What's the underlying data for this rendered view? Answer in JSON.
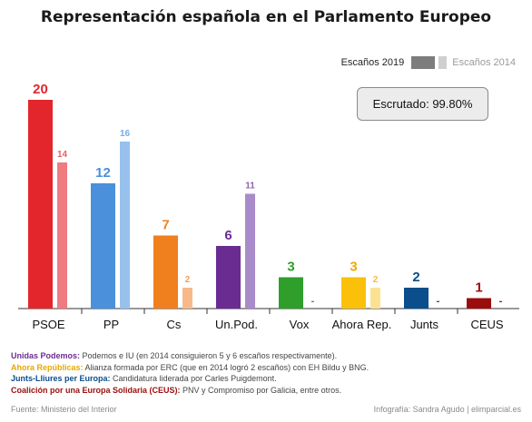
{
  "title": "Representación española en el Parlamento Europeo",
  "legend": {
    "label_2019": "Escaños 2019",
    "label_2014": "Escaños 2014"
  },
  "scrutiny": "Escrutado: 99.80%",
  "chart_data": {
    "type": "bar",
    "title": "Representación española en el Parlamento Europeo",
    "categories": [
      "PSOE",
      "PP",
      "Cs",
      "Un.Pod.",
      "Vox",
      "Ahora Rep.",
      "Junts",
      "CEUS"
    ],
    "series": [
      {
        "name": "Escaños 2019",
        "values": [
          20,
          12,
          7,
          6,
          3,
          3,
          2,
          1
        ]
      },
      {
        "name": "Escaños 2014",
        "values": [
          14,
          16,
          2,
          11,
          null,
          2,
          null,
          null
        ]
      }
    ],
    "labels_2019": [
      "20",
      "12",
      "7",
      "6",
      "3",
      "3",
      "2",
      "1"
    ],
    "labels_2014": [
      "14",
      "16",
      "2",
      "11",
      "-",
      "2",
      "-",
      "-"
    ],
    "colors_2019": [
      "#e3262b",
      "#4a90db",
      "#f07f1e",
      "#6a2c91",
      "#2f9e2b",
      "#fbc00a",
      "#0a4e8c",
      "#9b0d0d"
    ],
    "colors_2014": [
      "#ee7b80",
      "#97c0ec",
      "#f7b98a",
      "#a98bc9",
      "#8ecf8b",
      "#fde193",
      "#7da3c6",
      "#c87d7d"
    ],
    "label_colors_2019": [
      "#e3262b",
      "#4a90db",
      "#f07f1e",
      "#6a2c91",
      "#2f9e2b",
      "#f0a800",
      "#0a4e8c",
      "#9b0d0d"
    ],
    "label_colors_2014": [
      "#e3262b",
      "#4a90db",
      "#f07f1e",
      "#6a2c91",
      "#2f9e2b",
      "#f0a800",
      "#0a4e8c",
      "#9b0d0d"
    ],
    "ylim": [
      0,
      20
    ],
    "grid": false,
    "legend_position": "top-right"
  },
  "notes": [
    {
      "label": "Unidas Podemos:",
      "text": " Podemos e IU (en 2014 consiguieron 5 y 6 escaños respectivamente).",
      "color": "#6a2c91"
    },
    {
      "label": "Ahora Repúblicas:",
      "text": " Alianza formada por ERC (que en 2014 logró 2 escaños) con EH Bildu y BNG.",
      "color": "#e6a800"
    },
    {
      "label": "Junts-Lliures per Europa:",
      "text": " Candidatura liderada por Carles Puigdemont.",
      "color": "#0a4e8c"
    },
    {
      "label": "Coalición por una Europa Solidaria (CEUS):",
      "text": " PNV y Compromiso por Galicia, entre otros.",
      "color": "#9b0d0d"
    }
  ],
  "footer": {
    "source": "Fuente: Ministerio del Interior",
    "credit": "Infografía: Sandra Agudo | elimparcial.es"
  }
}
